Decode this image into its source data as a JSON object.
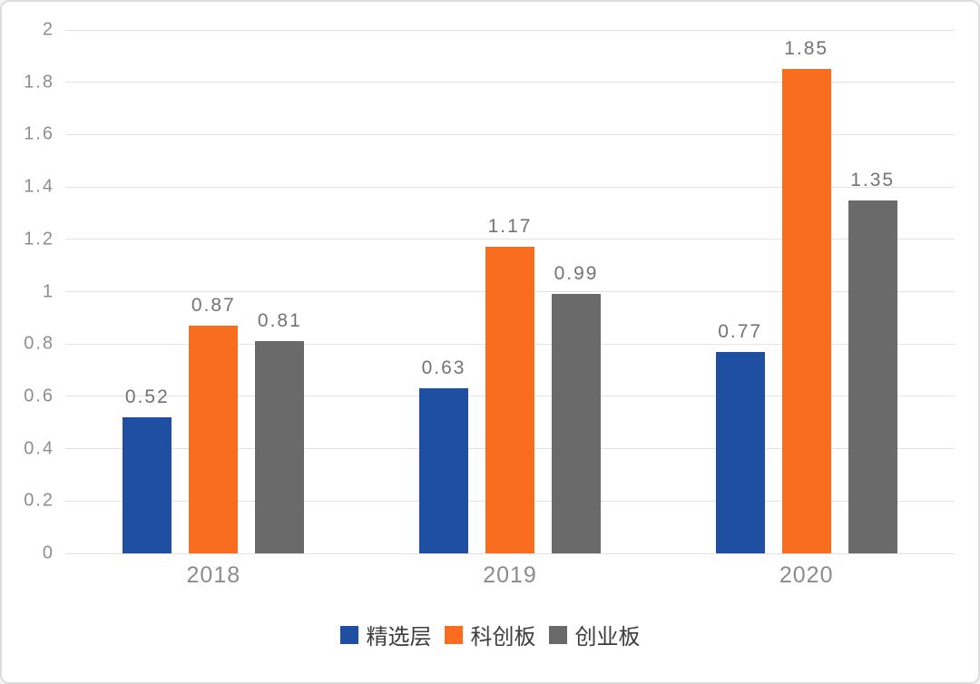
{
  "chart_data": {
    "type": "bar",
    "categories": [
      "2018",
      "2019",
      "2020"
    ],
    "series": [
      {
        "name": "精选层",
        "color": "#1F4FA2",
        "values": [
          0.52,
          0.63,
          0.77
        ],
        "value_labels": [
          "0.52",
          "0.63",
          "0.77"
        ]
      },
      {
        "name": "科创板",
        "color": "#F96D21",
        "values": [
          0.87,
          1.17,
          1.85
        ],
        "value_labels": [
          "0.87",
          "1.17",
          "1.85"
        ]
      },
      {
        "name": "创业板",
        "color": "#6A6A6A",
        "values": [
          0.81,
          0.99,
          1.35
        ],
        "value_labels": [
          "0.81",
          "0.99",
          "1.35"
        ]
      }
    ],
    "ylim": [
      0,
      2
    ],
    "ytick_step": 0.2,
    "yticks": [
      {
        "value": 0,
        "label": "0"
      },
      {
        "value": 0.2,
        "label": "0.2"
      },
      {
        "value": 0.4,
        "label": "0.4"
      },
      {
        "value": 0.6,
        "label": "0.6"
      },
      {
        "value": 0.8,
        "label": "0.8"
      },
      {
        "value": 1,
        "label": "1"
      },
      {
        "value": 1.2,
        "label": "1.2"
      },
      {
        "value": 1.4,
        "label": "1.4"
      },
      {
        "value": 1.6,
        "label": "1.6"
      },
      {
        "value": 1.8,
        "label": "1.8"
      },
      {
        "value": 2,
        "label": "2"
      }
    ],
    "grid": true,
    "legend_position": "bottom",
    "title": "",
    "xlabel": "",
    "ylabel": ""
  },
  "style": {
    "background": "#FFFFFF",
    "border": "#DCDCDC",
    "gridline": "#E3E3E3",
    "ytick_color": "#8E8E8E",
    "value_label_color": "#737373",
    "category_label_color": "#8C8C8C",
    "legend_text_color": "#3D3D3D"
  }
}
